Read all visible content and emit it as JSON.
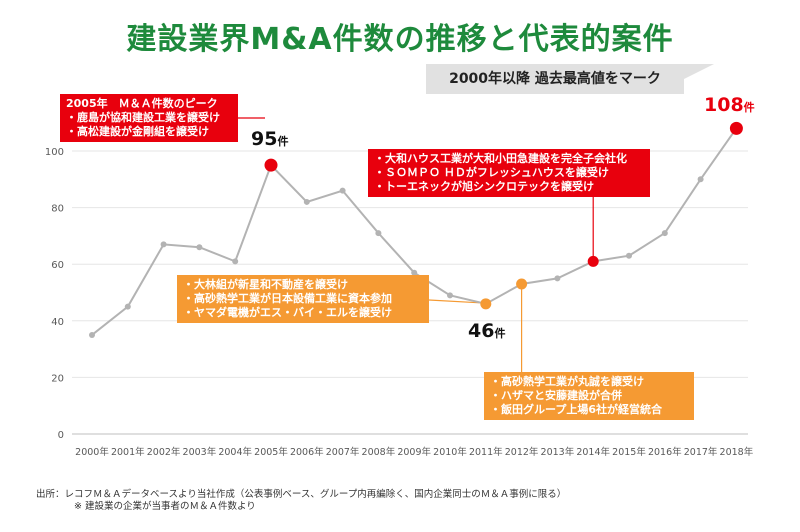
{
  "title": "建設業界M&A件数の推移と代表的案件",
  "banner": "2000年以降 過去最高値をマーク",
  "chart_data": {
    "type": "line",
    "categories": [
      "2000年",
      "2001年",
      "2002年",
      "2003年",
      "2004年",
      "2005年",
      "2006年",
      "2007年",
      "2008年",
      "2009年",
      "2010年",
      "2011年",
      "2012年",
      "2013年",
      "2014年",
      "2015年",
      "2016年",
      "2017年",
      "2018年"
    ],
    "values": [
      35,
      45,
      67,
      66,
      61,
      95,
      82,
      86,
      71,
      57,
      49,
      46,
      53,
      55,
      61,
      63,
      71,
      90,
      108
    ],
    "ylim": [
      0,
      110
    ],
    "yticks": [
      0,
      20,
      40,
      60,
      80,
      100
    ],
    "grid": true,
    "line_color": "#b3b3b3",
    "highlights": [
      {
        "year": "2005年",
        "color": "#e8000d"
      },
      {
        "year": "2011年",
        "color": "#f59a33"
      },
      {
        "year": "2012年",
        "color": "#f59a33"
      },
      {
        "year": "2014年",
        "color": "#e8000d"
      },
      {
        "year": "2018年",
        "color": "#e8000d"
      }
    ]
  },
  "callouts": {
    "peak2005": {
      "num": "95",
      "unit": "件"
    },
    "low2011": {
      "num": "46",
      "unit": "件"
    },
    "high2018": {
      "num": "108",
      "unit": "件"
    }
  },
  "boxes": {
    "box2005": {
      "lines": [
        "2005年　Ｍ＆Ａ件数のピーク",
        "・鹿島が協和建設工業を譲受け",
        "・高松建設が金剛組を譲受け"
      ]
    },
    "box2014": {
      "lines": [
        "・大和ハウス工業が大和小田急建設を完全子会社化",
        "・ＳＯＭＰＯ ＨＤがフレッシュハウスを譲受け",
        "・トーエネックが旭シンクロテックを譲受け"
      ]
    },
    "box2011": {
      "lines": [
        "・大林組が新星和不動産を譲受け",
        "・高砂熱学工業が日本設備工業に資本参加",
        "・ヤマダ電機がエス・バイ・エルを譲受け"
      ]
    },
    "box2012": {
      "lines": [
        "・高砂熱学工業が丸誠を譲受け",
        "・ハザマと安藤建設が合併",
        "・飯田グループ上場6社が経営統合"
      ]
    }
  },
  "source": {
    "line1": "出所：レコフＭ＆Ａデータベースより当社作成（公表事例ベース、グループ内再編除く、国内企業同士のＭ＆Ａ事例に限る）",
    "line2": "※ 建設業の企業が当事者のＭ＆Ａ件数より"
  }
}
